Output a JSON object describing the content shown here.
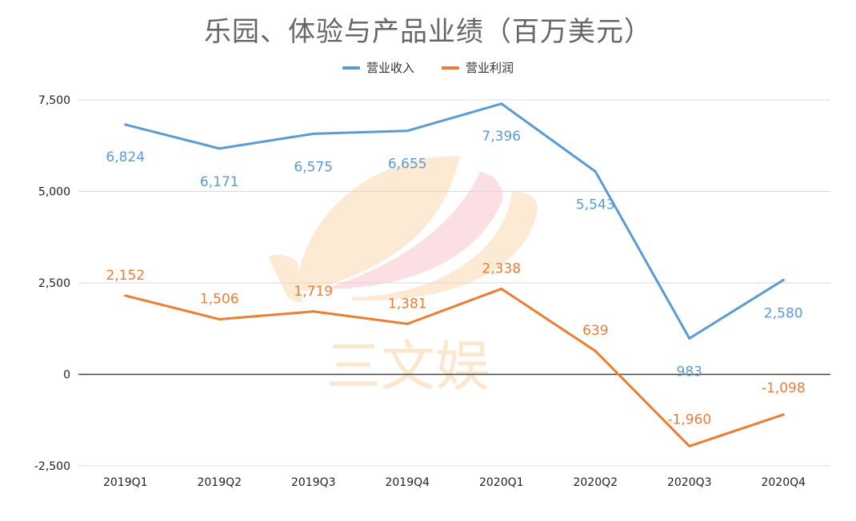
{
  "chart_data": {
    "type": "line",
    "title": "乐园、体验与产品业绩（百万美元）",
    "categories": [
      "2019Q1",
      "2019Q2",
      "2019Q3",
      "2019Q4",
      "2020Q1",
      "2020Q2",
      "2020Q3",
      "2020Q4"
    ],
    "series": [
      {
        "name": "营业收入",
        "color": "#5b9bd5",
        "values": [
          6824,
          6171,
          6575,
          6655,
          7396,
          5543,
          983,
          2580
        ],
        "labels": [
          "6,824",
          "6,171",
          "6,575",
          "6,655",
          "7,396",
          "5,543",
          "983",
          "2,580"
        ]
      },
      {
        "name": "营业利润",
        "color": "#ed7d31",
        "values": [
          2152,
          1506,
          1719,
          1381,
          2338,
          639,
          -1960,
          -1098
        ],
        "labels": [
          "2,152",
          "1,506",
          "1,719",
          "1,381",
          "2,338",
          "639",
          "-1,960",
          "-1,098"
        ]
      }
    ],
    "ylim": [
      -2500,
      7500
    ],
    "yticks": [
      -2500,
      0,
      2500,
      5000,
      7500
    ],
    "ytick_labels": [
      "-2,500",
      "0",
      "2,500",
      "5,000",
      "7,500"
    ],
    "legend_position": "top-center",
    "grid": true,
    "xlabel": "",
    "ylabel": ""
  },
  "watermark": {
    "text": "三文娱"
  }
}
